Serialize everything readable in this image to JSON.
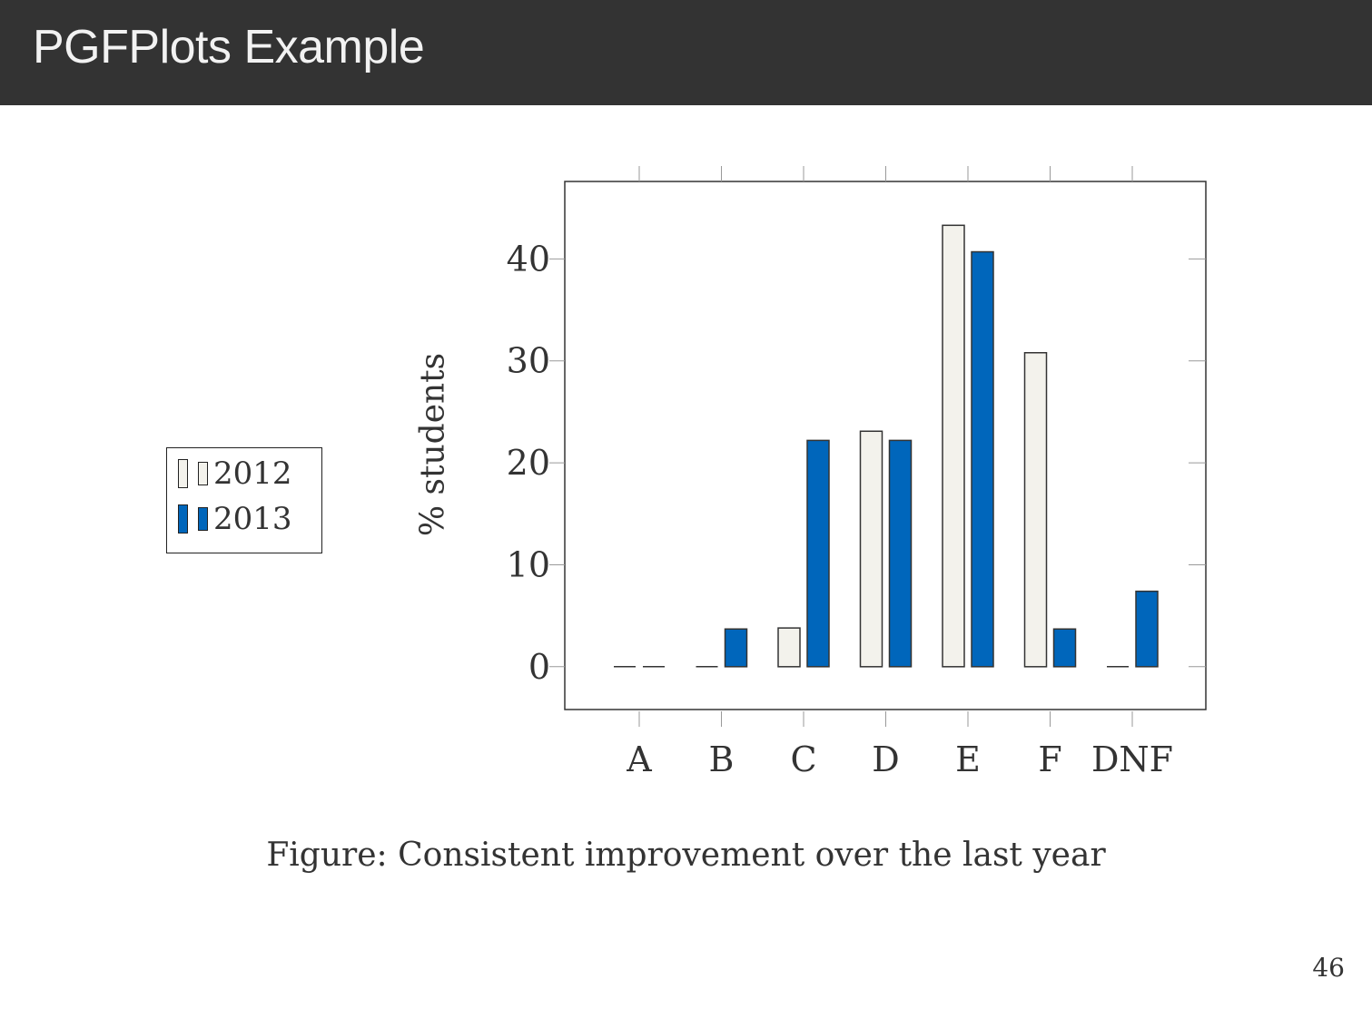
{
  "slide": {
    "title": "PGFPlots Example",
    "caption": "Figure: Consistent improvement over the last year",
    "page_number": "46"
  },
  "colors": {
    "title_bar": "#333333",
    "series_2012": "#f3f2ec",
    "series_2013": "#0066bb",
    "stroke": "#333333"
  },
  "chart_data": {
    "type": "bar",
    "categories": [
      "A",
      "B",
      "C",
      "D",
      "E",
      "F",
      "DNF"
    ],
    "series": [
      {
        "name": "2012",
        "values": [
          0,
          0,
          3.8,
          23.1,
          43.3,
          30.8,
          0
        ]
      },
      {
        "name": "2013",
        "values": [
          0,
          3.7,
          22.2,
          22.2,
          40.7,
          3.7,
          7.4
        ]
      }
    ],
    "ylabel": "% students",
    "xlabel": "",
    "ylim": [
      -4.2,
      47.6
    ],
    "yticks": [
      0,
      10,
      20,
      30,
      40
    ],
    "legend_position": "left, outside plot",
    "grid": false
  }
}
